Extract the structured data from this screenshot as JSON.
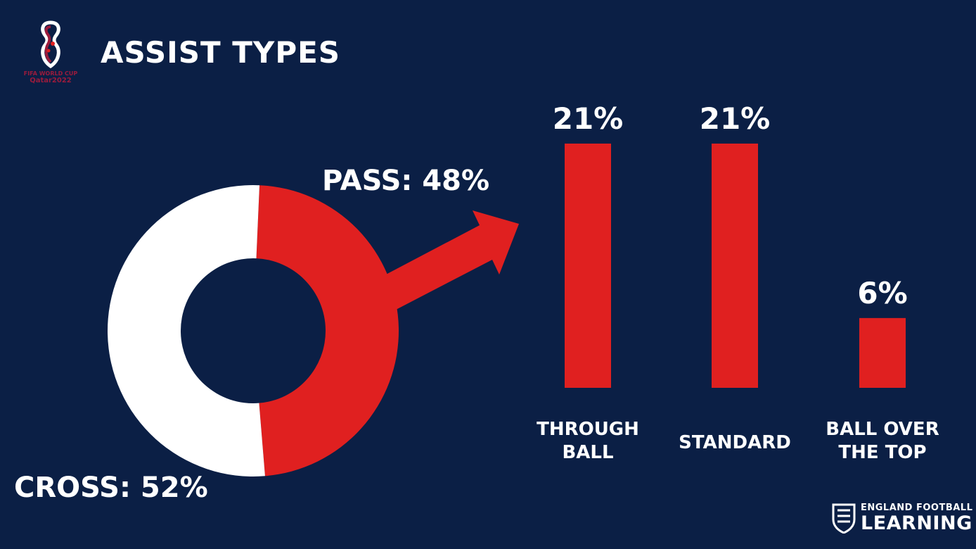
{
  "title": "ASSIST TYPES",
  "logo": {
    "line1": "FIFA WORLD CUP",
    "line2": "Qatar2022"
  },
  "brand": {
    "line1": "ENGLAND FOOTBALL",
    "line2": "LEARNING"
  },
  "colors": {
    "background": "#0b1f45",
    "accent_red": "#e02020",
    "white": "#ffffff",
    "logo_maroon": "#9b1b3c"
  },
  "chart_data": [
    {
      "type": "pie",
      "donut": true,
      "slices": [
        {
          "label": "PASS: 48%",
          "value": 48,
          "color": "#e02020"
        },
        {
          "label": "CROSS: 52%",
          "value": 52,
          "color": "#ffffff"
        }
      ]
    },
    {
      "type": "bar",
      "categories": [
        "THROUGH\nBALL",
        "STANDARD",
        "BALL OVER\nTHE TOP"
      ],
      "values": [
        21,
        21,
        6
      ],
      "value_labels": [
        "21%",
        "21%",
        "6%"
      ],
      "color": "#e02020",
      "ylim": [
        0,
        21
      ]
    }
  ]
}
